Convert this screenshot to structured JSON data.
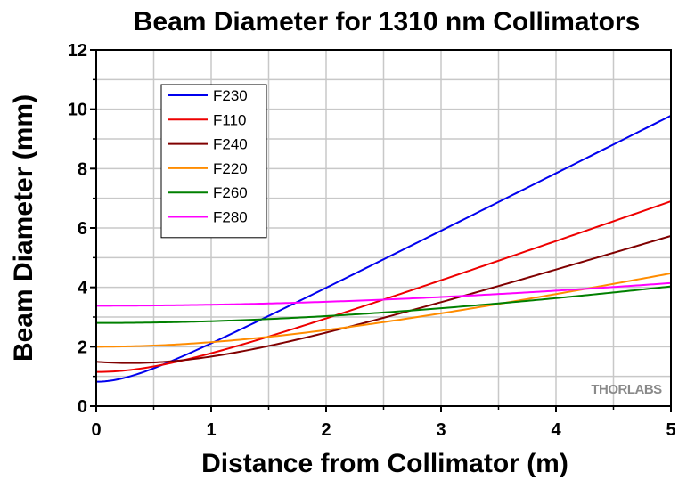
{
  "chart_data": {
    "type": "line",
    "title": "Beam Diameter for 1310 nm Collimators",
    "xlabel": "Distance from Collimator (m)",
    "ylabel": "Beam Diameter (mm)",
    "xlim": [
      0,
      5
    ],
    "ylim": [
      0,
      12
    ],
    "xticks": [
      "0",
      "1",
      "2",
      "3",
      "4",
      "5"
    ],
    "yticks": [
      "0",
      "2",
      "4",
      "6",
      "8",
      "10",
      "12"
    ],
    "grid": true,
    "legend_position": "top-left",
    "watermark": "THORLABS",
    "series": [
      {
        "name": "F230",
        "color": "#0000ee",
        "model": {
          "w0": 0.82,
          "z0": 0.0,
          "slope": 1.95
        }
      },
      {
        "name": "F110",
        "color": "#ee0000",
        "model": {
          "w0": 1.15,
          "z0": 0.0,
          "slope": 1.36
        }
      },
      {
        "name": "F240",
        "color": "#800000",
        "model": {
          "w0": 1.45,
          "z0": 0.3,
          "slope": 1.18
        }
      },
      {
        "name": "F220",
        "color": "#ff8c00",
        "model": {
          "w0": 2.0,
          "z0": 0.0,
          "slope": 0.8
        }
      },
      {
        "name": "F260",
        "color": "#008000",
        "model": {
          "w0": 2.8,
          "z0": 0.0,
          "slope": 0.58
        }
      },
      {
        "name": "F280",
        "color": "#ff00ff",
        "model": {
          "w0": 3.38,
          "z0": 0.0,
          "slope": 0.48
        }
      }
    ]
  }
}
